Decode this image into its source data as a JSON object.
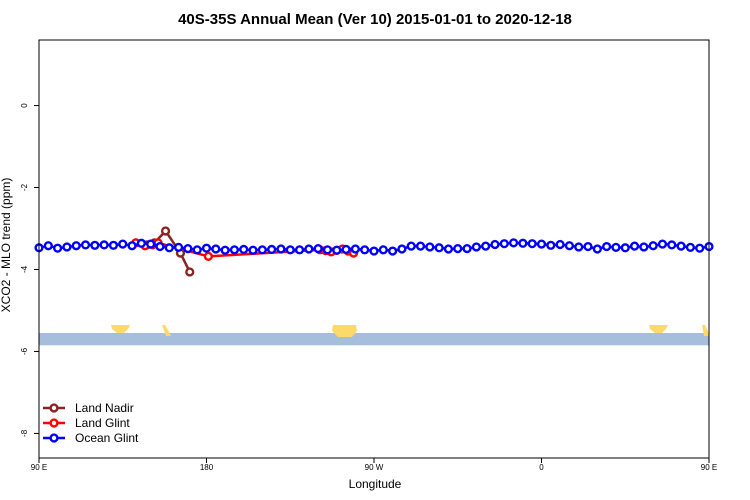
{
  "chart_data": {
    "type": "line",
    "title": "40S-35S Annual Mean (Ver 10)   2015-01-01 to 2020-12-18",
    "xlabel": "Longitude",
    "ylabel": "XCO2 - MLO trend (ppm)",
    "xlim": [
      90,
      450
    ],
    "ylim": [
      -8.6,
      1.6
    ],
    "x_ticks": [
      {
        "value": 90,
        "label": "90 E"
      },
      {
        "value": 180,
        "label": "180"
      },
      {
        "value": 270,
        "label": "90 W"
      },
      {
        "value": 360,
        "label": "0"
      },
      {
        "value": 450,
        "label": "90 E"
      },
      {
        "value": 540,
        "label": "180"
      }
    ],
    "y_ticks": [
      {
        "value": 0,
        "label": "0"
      },
      {
        "value": -2,
        "label": "-2"
      },
      {
        "value": -4,
        "label": "-4"
      },
      {
        "value": -6,
        "label": "-6"
      },
      {
        "value": -8,
        "label": "-8"
      }
    ],
    "legend_position": "bottom-left",
    "land_strip": {
      "y_top": -5.55,
      "y_bottom": -5.85,
      "ocean_color": "#a6bddb",
      "land_color": "#fbd96b"
    },
    "series": [
      {
        "name": "Land Nadir",
        "color": "#8b2323",
        "x": [
          142,
          148,
          152,
          158,
          166,
          171
        ],
        "y": [
          -3.35,
          -3.4,
          -3.35,
          -3.06,
          -3.6,
          -4.06
        ]
      },
      {
        "name": "Land Glint",
        "color": "#ff0000",
        "x": [
          142,
          147,
          151,
          154,
          181,
          241,
          244,
          247,
          250,
          253,
          256,
          259
        ],
        "y": [
          -3.35,
          -3.42,
          -3.4,
          -3.35,
          -3.68,
          -3.52,
          -3.54,
          -3.57,
          -3.53,
          -3.5,
          -3.55,
          -3.6
        ]
      },
      {
        "name": "Ocean Glint",
        "color": "#0000ff",
        "x": [
          90,
          95,
          100,
          105,
          110,
          115,
          120,
          125,
          130,
          135,
          140,
          145,
          150,
          155,
          160,
          165,
          170,
          175,
          180,
          185,
          190,
          195,
          200,
          205,
          210,
          215,
          220,
          225,
          230,
          235,
          240,
          245,
          250,
          255,
          260,
          265,
          270,
          275,
          280,
          285,
          290,
          295,
          300,
          305,
          310,
          315,
          320,
          325,
          330,
          335,
          340,
          345,
          350,
          355,
          360,
          365,
          370,
          375,
          380,
          385,
          390,
          395,
          400,
          405,
          410,
          415,
          420,
          425,
          430,
          435,
          440,
          445,
          450
        ],
        "y": [
          -3.47,
          -3.42,
          -3.48,
          -3.45,
          -3.42,
          -3.4,
          -3.41,
          -3.4,
          -3.41,
          -3.38,
          -3.42,
          -3.36,
          -3.38,
          -3.44,
          -3.47,
          -3.46,
          -3.49,
          -3.52,
          -3.48,
          -3.5,
          -3.53,
          -3.52,
          -3.51,
          -3.53,
          -3.52,
          -3.51,
          -3.5,
          -3.52,
          -3.52,
          -3.5,
          -3.49,
          -3.52,
          -3.53,
          -3.51,
          -3.5,
          -3.52,
          -3.55,
          -3.52,
          -3.55,
          -3.5,
          -3.43,
          -3.43,
          -3.45,
          -3.47,
          -3.5,
          -3.49,
          -3.49,
          -3.45,
          -3.43,
          -3.39,
          -3.37,
          -3.35,
          -3.36,
          -3.37,
          -3.38,
          -3.41,
          -3.39,
          -3.42,
          -3.45,
          -3.44,
          -3.5,
          -3.44,
          -3.46,
          -3.47,
          -3.43,
          -3.45,
          -3.42,
          -3.38,
          -3.4,
          -3.43,
          -3.46,
          -3.48,
          -3.44
        ]
      }
    ]
  }
}
